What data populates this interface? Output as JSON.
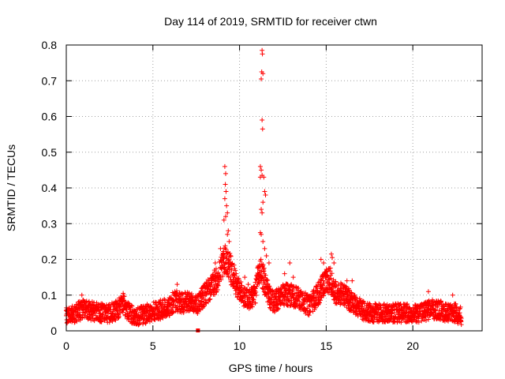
{
  "chart_data": {
    "type": "scatter",
    "title": "Day 114 of 2019, SRMTID for receiver ctwn",
    "xlabel": "GPS time / hours",
    "ylabel": "SRMTID / TECUs",
    "xlim": [
      0,
      24
    ],
    "ylim": [
      0,
      0.8
    ],
    "x_ticks": [
      0,
      5,
      10,
      15,
      20
    ],
    "x_tick_labels": [
      "0",
      "5",
      "10",
      "15",
      "20"
    ],
    "y_ticks": [
      0,
      0.1,
      0.2,
      0.3,
      0.4,
      0.5,
      0.6,
      0.7,
      0.8
    ],
    "y_tick_labels": [
      "0",
      "0.1",
      "0.2",
      "0.3",
      "0.4",
      "0.5",
      "0.6",
      "0.7",
      "0.8"
    ],
    "grid": true,
    "marker": "+",
    "series": [
      {
        "name": "SRMTID",
        "color": "#ff0000",
        "envelope": {
          "x": [
            0,
            0.5,
            1,
            1.5,
            2,
            2.5,
            3,
            3.25,
            3.5,
            4,
            4.5,
            5,
            5.5,
            6,
            6.25,
            6.5,
            7,
            7.5,
            8,
            8.5,
            8.75,
            9,
            9.25,
            9.5,
            9.75,
            10,
            10.5,
            10.9,
            11.1,
            11.3,
            11.5,
            11.75,
            12,
            12.5,
            13,
            13.5,
            14,
            14.5,
            14.75,
            15,
            15.25,
            15.5,
            16,
            16.5,
            17,
            17.5,
            18,
            18.5,
            19,
            19.5,
            20,
            20.5,
            21,
            21.5,
            22,
            22.5,
            22.8
          ],
          "y": [
            0.04,
            0.05,
            0.06,
            0.055,
            0.05,
            0.05,
            0.06,
            0.08,
            0.055,
            0.04,
            0.045,
            0.055,
            0.06,
            0.07,
            0.085,
            0.08,
            0.08,
            0.07,
            0.1,
            0.13,
            0.15,
            0.19,
            0.2,
            0.17,
            0.14,
            0.11,
            0.09,
            0.1,
            0.17,
            0.16,
            0.13,
            0.09,
            0.08,
            0.1,
            0.1,
            0.09,
            0.07,
            0.1,
            0.12,
            0.14,
            0.14,
            0.11,
            0.1,
            0.08,
            0.06,
            0.05,
            0.05,
            0.05,
            0.05,
            0.05,
            0.05,
            0.05,
            0.06,
            0.06,
            0.05,
            0.05,
            0.04
          ]
        },
        "spread": 0.035,
        "points": [
          {
            "x": 9.15,
            "y": 0.46
          },
          {
            "x": 9.2,
            "y": 0.44
          },
          {
            "x": 9.18,
            "y": 0.41
          },
          {
            "x": 9.22,
            "y": 0.39
          },
          {
            "x": 9.15,
            "y": 0.37
          },
          {
            "x": 9.25,
            "y": 0.35
          },
          {
            "x": 9.3,
            "y": 0.33
          },
          {
            "x": 9.2,
            "y": 0.32
          },
          {
            "x": 9.1,
            "y": 0.31
          },
          {
            "x": 9.35,
            "y": 0.28
          },
          {
            "x": 9.3,
            "y": 0.27
          },
          {
            "x": 9.4,
            "y": 0.25
          },
          {
            "x": 11.3,
            "y": 0.785
          },
          {
            "x": 11.32,
            "y": 0.775
          },
          {
            "x": 11.28,
            "y": 0.725
          },
          {
            "x": 11.35,
            "y": 0.72
          },
          {
            "x": 11.25,
            "y": 0.705
          },
          {
            "x": 11.3,
            "y": 0.59
          },
          {
            "x": 11.33,
            "y": 0.565
          },
          {
            "x": 11.2,
            "y": 0.46
          },
          {
            "x": 11.25,
            "y": 0.45
          },
          {
            "x": 11.3,
            "y": 0.435
          },
          {
            "x": 11.2,
            "y": 0.43
          },
          {
            "x": 11.4,
            "y": 0.43
          },
          {
            "x": 11.45,
            "y": 0.39
          },
          {
            "x": 11.5,
            "y": 0.38
          },
          {
            "x": 11.35,
            "y": 0.36
          },
          {
            "x": 11.25,
            "y": 0.34
          },
          {
            "x": 11.3,
            "y": 0.33
          },
          {
            "x": 11.2,
            "y": 0.275
          },
          {
            "x": 11.25,
            "y": 0.27
          },
          {
            "x": 11.35,
            "y": 0.25
          },
          {
            "x": 11.45,
            "y": 0.23
          },
          {
            "x": 11.55,
            "y": 0.21
          },
          {
            "x": 11.7,
            "y": 0.19
          },
          {
            "x": 10.3,
            "y": 0.15
          },
          {
            "x": 10.5,
            "y": 0.13
          },
          {
            "x": 10.8,
            "y": 0.12
          },
          {
            "x": 14.7,
            "y": 0.2
          },
          {
            "x": 14.85,
            "y": 0.19
          },
          {
            "x": 15.3,
            "y": 0.215
          },
          {
            "x": 15.35,
            "y": 0.205
          },
          {
            "x": 15.45,
            "y": 0.19
          },
          {
            "x": 16.2,
            "y": 0.14
          },
          {
            "x": 16.5,
            "y": 0.14
          },
          {
            "x": 12.9,
            "y": 0.19
          },
          {
            "x": 12.6,
            "y": 0.16
          },
          {
            "x": 13.1,
            "y": 0.15
          },
          {
            "x": 8.9,
            "y": 0.23
          },
          {
            "x": 8.6,
            "y": 0.19
          },
          {
            "x": 20.9,
            "y": 0.11
          },
          {
            "x": 22.3,
            "y": 0.1
          },
          {
            "x": 3.3,
            "y": 0.1
          },
          {
            "x": 0.9,
            "y": 0.1
          },
          {
            "x": 6.4,
            "y": 0.13
          }
        ]
      },
      {
        "name": "marker",
        "color": "#ff0000",
        "marker": "square",
        "points": [
          {
            "x": 7.6,
            "y": 0.0
          }
        ]
      }
    ]
  }
}
